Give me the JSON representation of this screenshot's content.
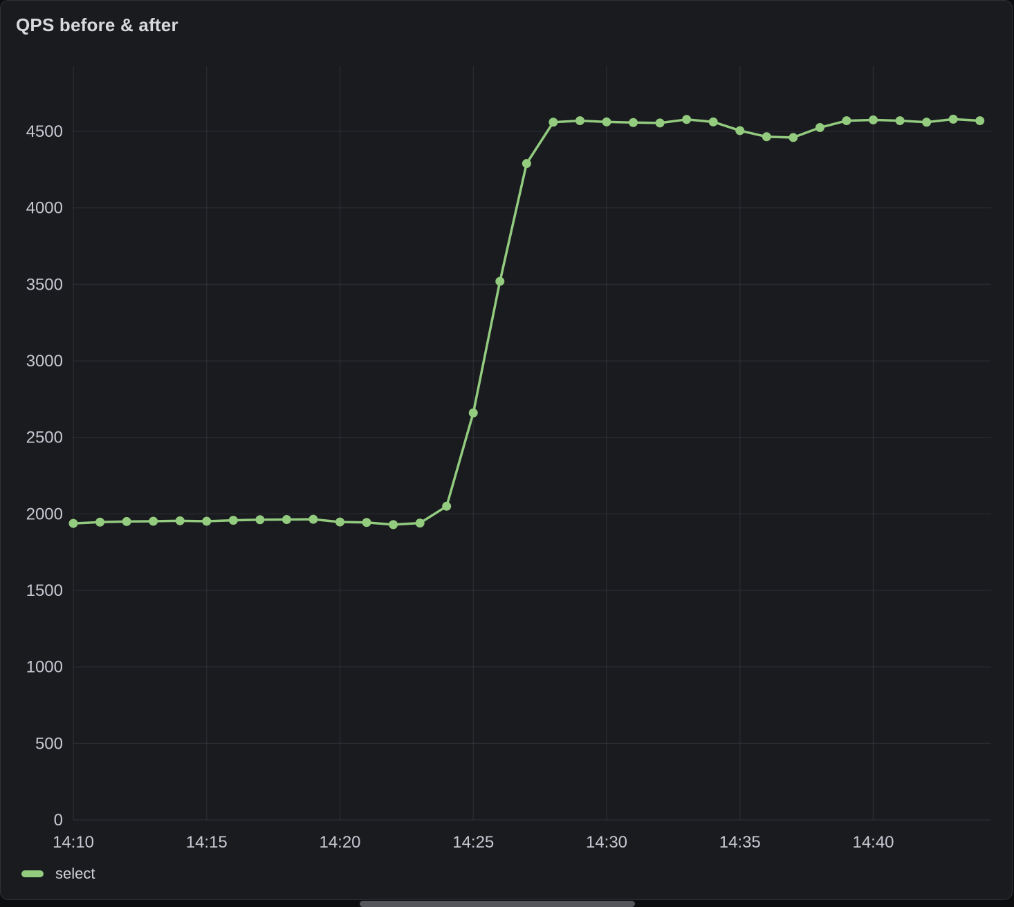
{
  "panel": {
    "title": "QPS before & after"
  },
  "colors": {
    "series_green": "#93cb7f",
    "grid": "rgba(204,204,220,0.09)",
    "tick_label": "#c7c8d1",
    "title": "#d8d9dd",
    "panel_background": "#191b1f",
    "panel_border": "#2e3136",
    "page_background": "#0c0d0f",
    "scrollbar_thumb": "#54565c"
  },
  "chart_data": {
    "type": "line",
    "title": "QPS before & after",
    "xlabel": "",
    "ylabel": "",
    "x": [
      "14:10",
      "14:11",
      "14:12",
      "14:13",
      "14:14",
      "14:15",
      "14:16",
      "14:17",
      "14:18",
      "14:19",
      "14:20",
      "14:21",
      "14:22",
      "14:23",
      "14:24",
      "14:25",
      "14:26",
      "14:27",
      "14:28",
      "14:29",
      "14:30",
      "14:31",
      "14:32",
      "14:33",
      "14:34",
      "14:35",
      "14:36",
      "14:37",
      "14:38",
      "14:39",
      "14:40",
      "14:41",
      "14:42",
      "14:43",
      "14:44"
    ],
    "series": [
      {
        "name": "select",
        "color": "#93cb7f",
        "values": [
          1938,
          1946,
          1950,
          1952,
          1955,
          1952,
          1958,
          1962,
          1963,
          1965,
          1947,
          1944,
          1930,
          1940,
          2050,
          2660,
          3520,
          4290,
          4560,
          4570,
          4562,
          4558,
          4555,
          4578,
          4562,
          4505,
          4465,
          4460,
          4525,
          4570,
          4575,
          4570,
          4560,
          4580,
          4570
        ]
      }
    ],
    "ylim": [
      0,
      4925
    ],
    "y_ticks": [
      0,
      500,
      1000,
      1500,
      2000,
      2500,
      3000,
      3500,
      4000,
      4500
    ],
    "x_ticks": [
      "14:10",
      "14:15",
      "14:20",
      "14:25",
      "14:30",
      "14:35",
      "14:40"
    ],
    "grid": true,
    "markers": true,
    "legend_position": "bottom-left"
  },
  "scrollbar": {
    "visible": true
  }
}
